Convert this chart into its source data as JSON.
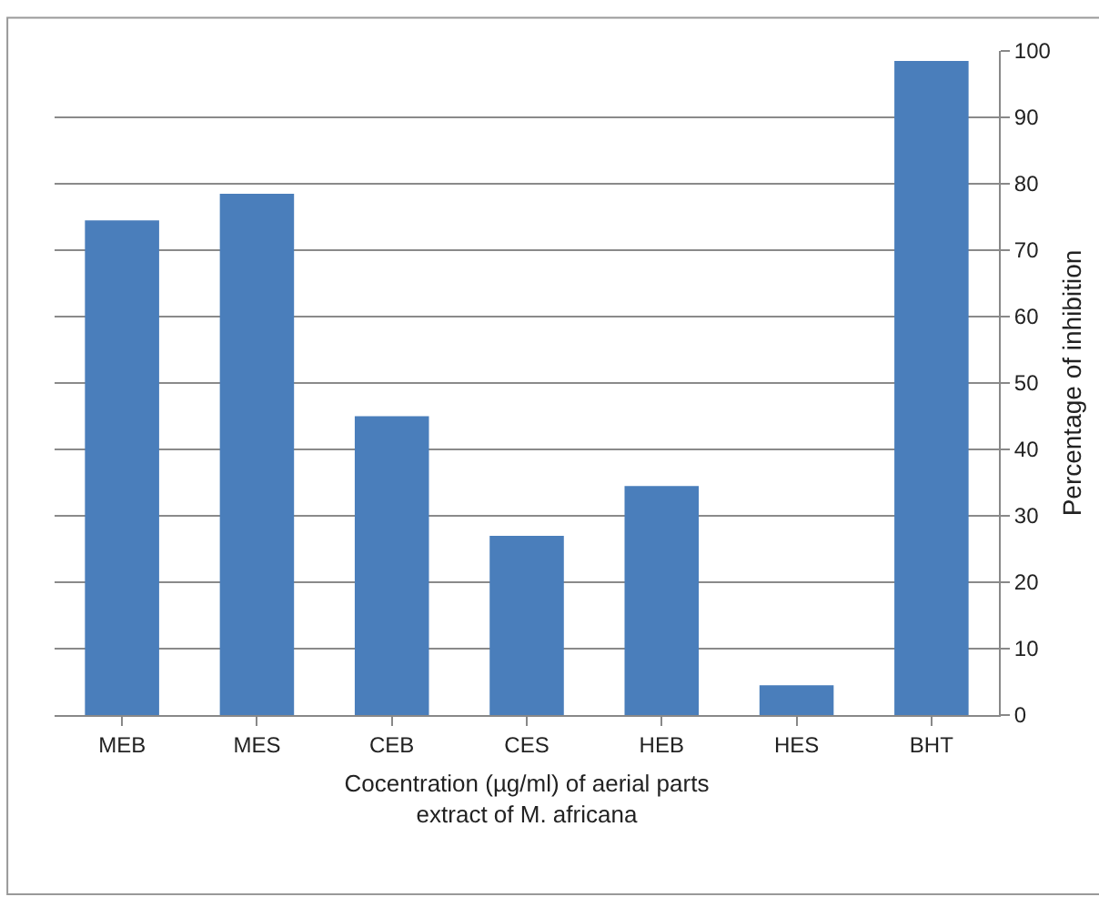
{
  "chart_data": {
    "type": "bar",
    "categories": [
      "MEB",
      "MES",
      "CEB",
      "CES",
      "HEB",
      "HES",
      "BHT"
    ],
    "values": [
      74.5,
      78.5,
      45,
      27,
      34.5,
      4.5,
      98.5
    ],
    "color": "#4a7ebb",
    "ylabel": "Percentage of inhibition",
    "xlabel": "Cocentration (µg/ml) of aerial parts\nextract of M. africana",
    "ylim": [
      0,
      100
    ],
    "yticks": [
      0,
      10,
      20,
      30,
      40,
      50,
      60,
      70,
      80,
      90,
      100
    ],
    "grid": "y"
  }
}
